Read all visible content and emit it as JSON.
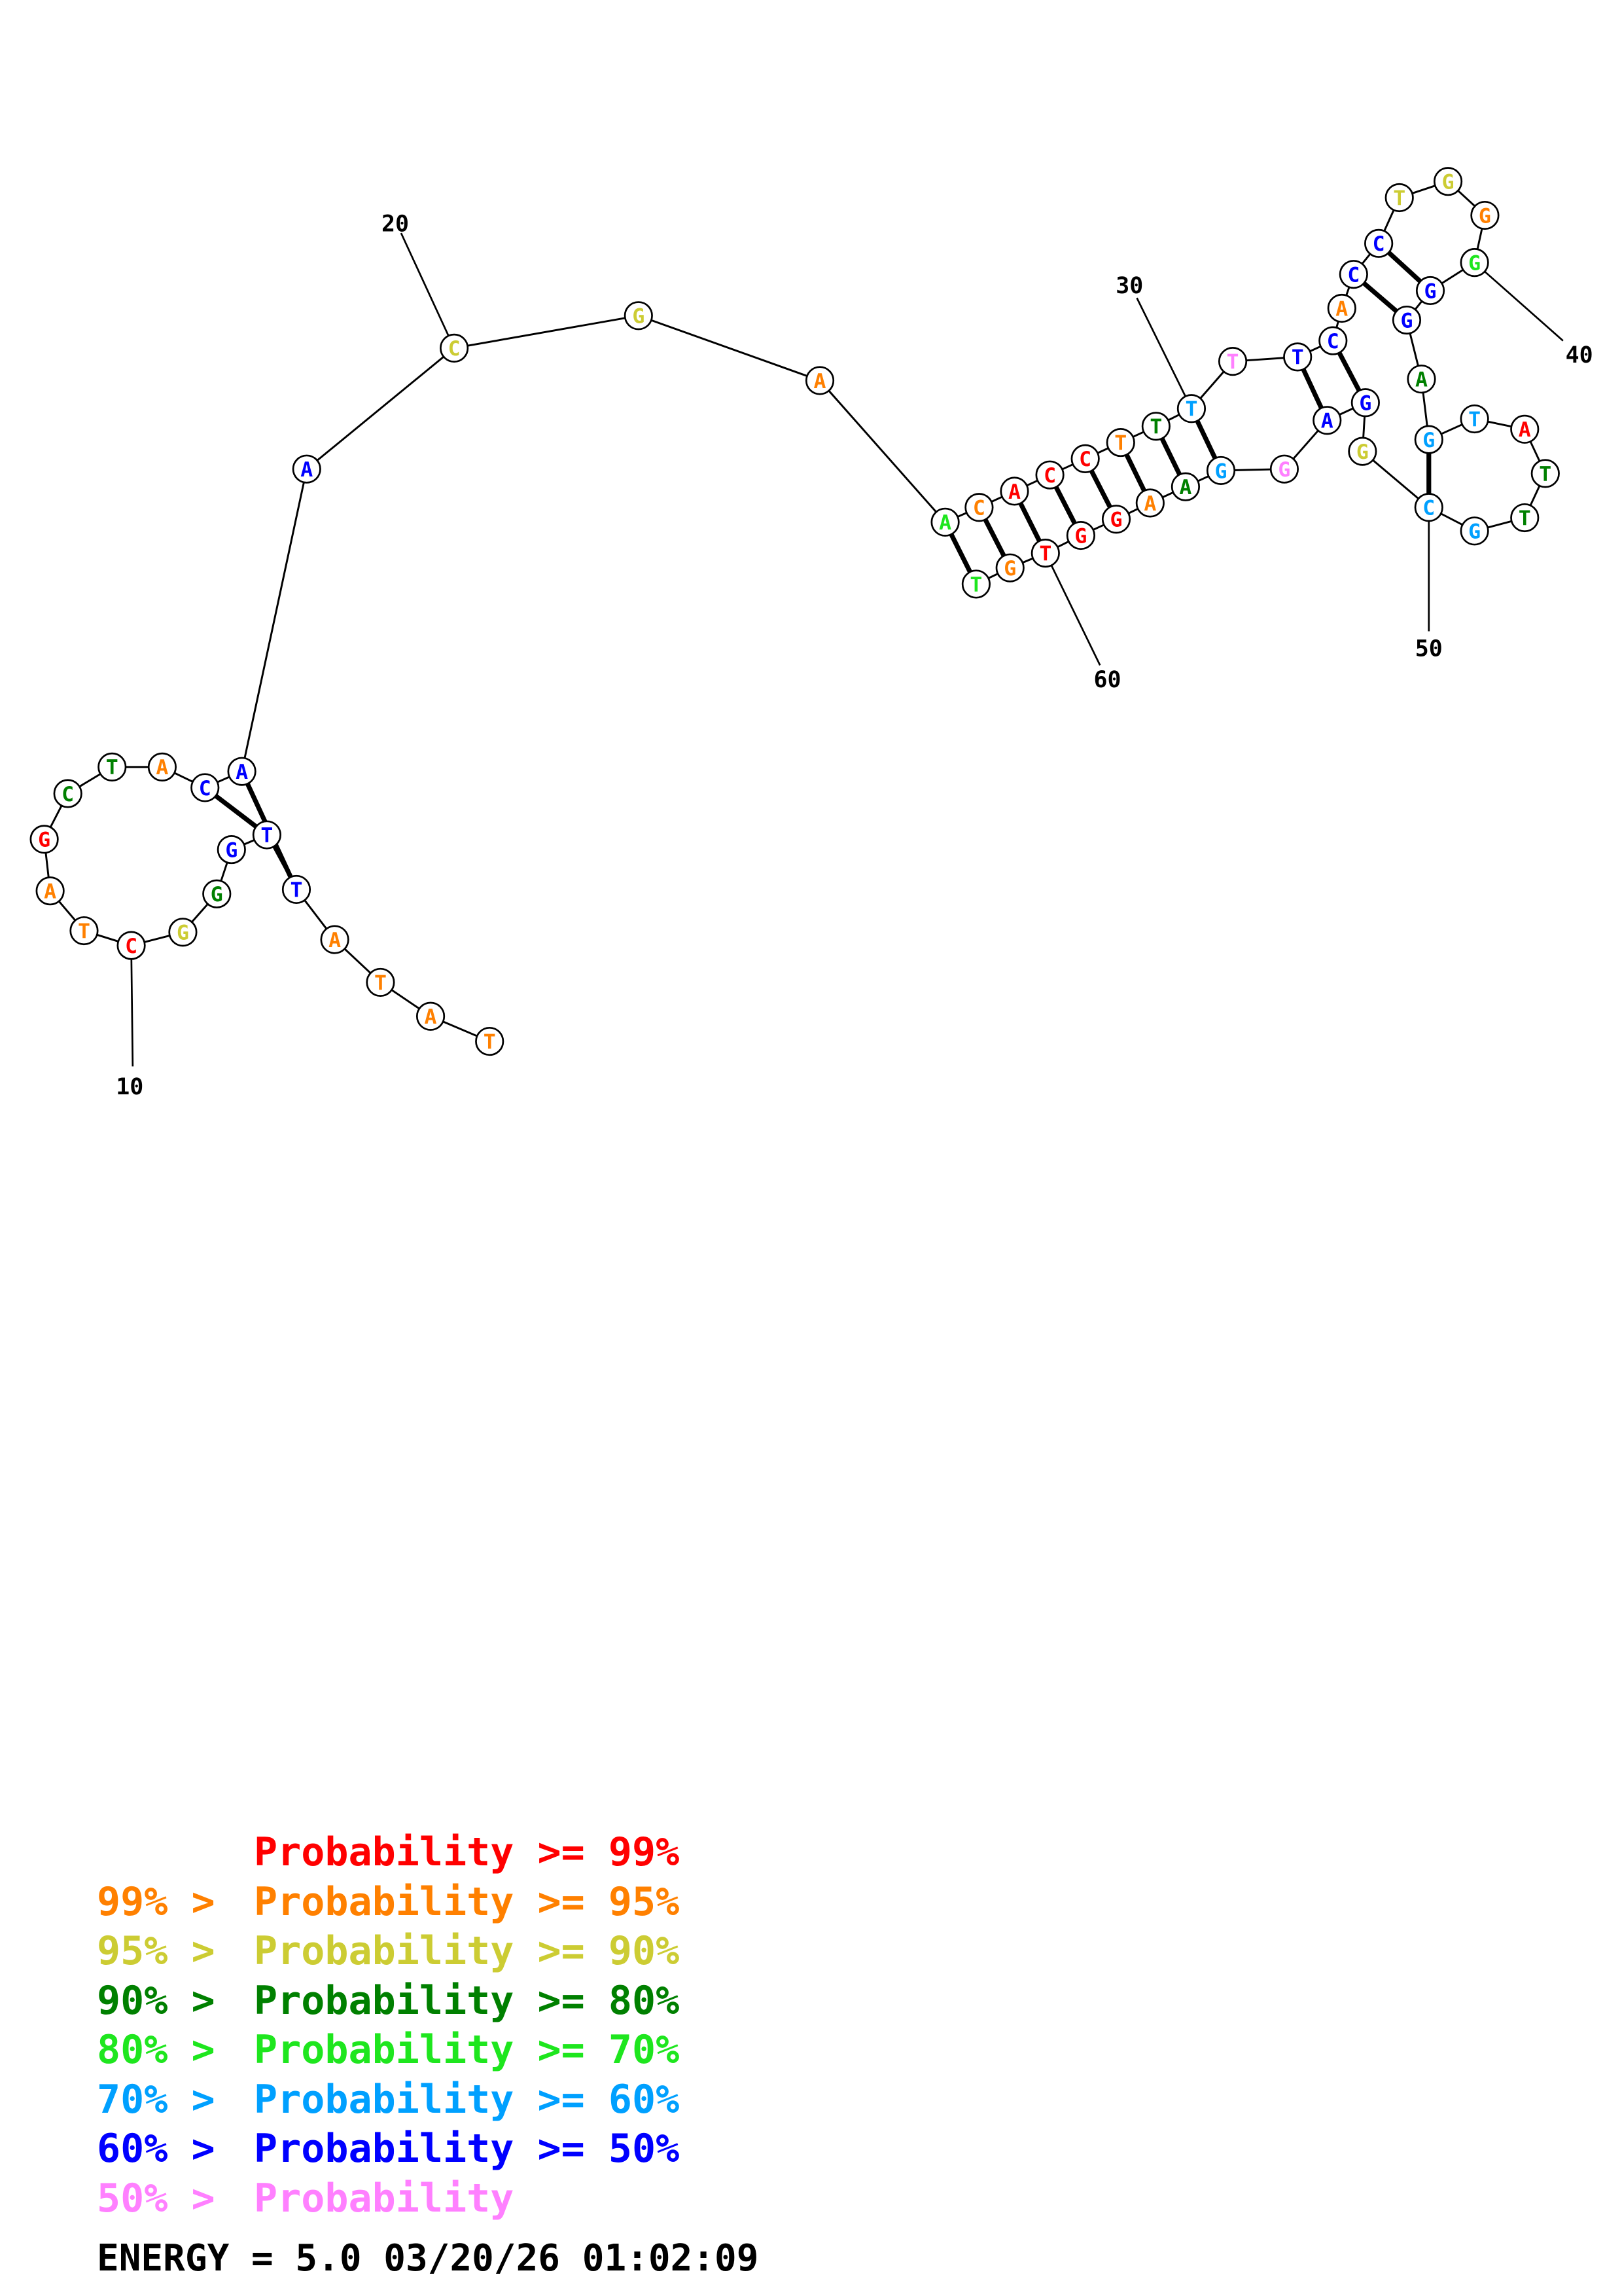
{
  "colors": {
    "red": "#ff0000",
    "orange": "#ff8000",
    "yellow": "#cccc33",
    "darkgreen": "#008000",
    "green": "#1ee61e",
    "cyan": "#00a0ff",
    "blue": "#0000ff",
    "pink": "#ff80ff"
  },
  "sequence": [
    {
      "n": 1,
      "b": "T",
      "c": "orange"
    },
    {
      "n": 2,
      "b": "A",
      "c": "orange"
    },
    {
      "n": 3,
      "b": "T",
      "c": "orange"
    },
    {
      "n": 4,
      "b": "A",
      "c": "orange"
    },
    {
      "n": 5,
      "b": "T",
      "c": "blue"
    },
    {
      "n": 6,
      "b": "T",
      "c": "blue"
    },
    {
      "n": 7,
      "b": "G",
      "c": "blue"
    },
    {
      "n": 8,
      "b": "G",
      "c": "darkgreen"
    },
    {
      "n": 9,
      "b": "G",
      "c": "yellow"
    },
    {
      "n": 10,
      "b": "C",
      "c": "red"
    },
    {
      "n": 11,
      "b": "T",
      "c": "orange"
    },
    {
      "n": 12,
      "b": "A",
      "c": "orange"
    },
    {
      "n": 13,
      "b": "G",
      "c": "red"
    },
    {
      "n": 14,
      "b": "C",
      "c": "darkgreen"
    },
    {
      "n": 15,
      "b": "T",
      "c": "darkgreen"
    },
    {
      "n": 16,
      "b": "A",
      "c": "orange"
    },
    {
      "n": 17,
      "b": "C",
      "c": "blue"
    },
    {
      "n": 18,
      "b": "A",
      "c": "blue"
    },
    {
      "n": 19,
      "b": "A",
      "c": "blue"
    },
    {
      "n": 20,
      "b": "C",
      "c": "yellow"
    },
    {
      "n": 21,
      "b": "G",
      "c": "yellow"
    },
    {
      "n": 22,
      "b": "A",
      "c": "orange"
    },
    {
      "n": 23,
      "b": "A",
      "c": "green"
    },
    {
      "n": 24,
      "b": "C",
      "c": "orange"
    },
    {
      "n": 25,
      "b": "A",
      "c": "red"
    },
    {
      "n": 26,
      "b": "C",
      "c": "red"
    },
    {
      "n": 27,
      "b": "C",
      "c": "red"
    },
    {
      "n": 28,
      "b": "T",
      "c": "orange"
    },
    {
      "n": 29,
      "b": "T",
      "c": "darkgreen"
    },
    {
      "n": 30,
      "b": "T",
      "c": "cyan"
    },
    {
      "n": 31,
      "b": "T",
      "c": "pink"
    },
    {
      "n": 32,
      "b": "T",
      "c": "blue"
    },
    {
      "n": 33,
      "b": "C",
      "c": "blue"
    },
    {
      "n": 34,
      "b": "A",
      "c": "orange"
    },
    {
      "n": 35,
      "b": "C",
      "c": "blue"
    },
    {
      "n": 36,
      "b": "C",
      "c": "blue"
    },
    {
      "n": 37,
      "b": "T",
      "c": "yellow"
    },
    {
      "n": 38,
      "b": "G",
      "c": "yellow"
    },
    {
      "n": 39,
      "b": "G",
      "c": "orange"
    },
    {
      "n": 40,
      "b": "G",
      "c": "green"
    },
    {
      "n": 41,
      "b": "G",
      "c": "blue"
    },
    {
      "n": 42,
      "b": "G",
      "c": "blue"
    },
    {
      "n": 43,
      "b": "A",
      "c": "darkgreen"
    },
    {
      "n": 44,
      "b": "G",
      "c": "cyan"
    },
    {
      "n": 45,
      "b": "T",
      "c": "cyan"
    },
    {
      "n": 46,
      "b": "A",
      "c": "red"
    },
    {
      "n": 47,
      "b": "T",
      "c": "darkgreen"
    },
    {
      "n": 48,
      "b": "T",
      "c": "darkgreen"
    },
    {
      "n": 49,
      "b": "G",
      "c": "cyan"
    },
    {
      "n": 50,
      "b": "C",
      "c": "cyan"
    },
    {
      "n": 51,
      "b": "G",
      "c": "yellow"
    },
    {
      "n": 52,
      "b": "G",
      "c": "blue"
    },
    {
      "n": 53,
      "b": "A",
      "c": "blue"
    },
    {
      "n": 54,
      "b": "G",
      "c": "pink"
    },
    {
      "n": 55,
      "b": "G",
      "c": "cyan"
    },
    {
      "n": 56,
      "b": "A",
      "c": "darkgreen"
    },
    {
      "n": 57,
      "b": "A",
      "c": "orange"
    },
    {
      "n": 58,
      "b": "G",
      "c": "red"
    },
    {
      "n": 59,
      "b": "G",
      "c": "red"
    },
    {
      "n": 60,
      "b": "T",
      "c": "red"
    },
    {
      "n": 61,
      "b": "G",
      "c": "orange"
    },
    {
      "n": 62,
      "b": "T",
      "c": "green"
    }
  ],
  "pairs": [
    [
      5,
      18
    ],
    [
      6,
      17
    ],
    [
      23,
      62
    ],
    [
      24,
      61
    ],
    [
      25,
      60
    ],
    [
      26,
      59
    ],
    [
      27,
      58
    ],
    [
      28,
      57
    ],
    [
      29,
      56
    ],
    [
      30,
      55
    ],
    [
      32,
      53
    ],
    [
      33,
      52
    ],
    [
      35,
      42
    ],
    [
      36,
      41
    ],
    [
      44,
      50
    ]
  ],
  "position_labels": [
    {
      "n": 10,
      "text": "10"
    },
    {
      "n": 20,
      "text": "20"
    },
    {
      "n": 30,
      "text": "30"
    },
    {
      "n": 40,
      "text": "40"
    },
    {
      "n": 50,
      "text": "50"
    },
    {
      "n": 60,
      "text": "60"
    }
  ],
  "legend": [
    {
      "left": "",
      "right": "Probability >= 99%",
      "c": "red"
    },
    {
      "left": "99% >",
      "right": "Probability >= 95%",
      "c": "orange"
    },
    {
      "left": "95% >",
      "right": "Probability >= 90%",
      "c": "yellow"
    },
    {
      "left": "90% >",
      "right": "Probability >= 80%",
      "c": "darkgreen"
    },
    {
      "left": "80% >",
      "right": "Probability >= 70%",
      "c": "green"
    },
    {
      "left": "70% >",
      "right": "Probability >= 60%",
      "c": "cyan"
    },
    {
      "left": "60% >",
      "right": "Probability >= 50%",
      "c": "blue"
    },
    {
      "left": "50% >",
      "right": "Probability",
      "c": "pink"
    }
  ],
  "footer": {
    "energy": "ENERGY = 5.0  03/20/26 01:02:09"
  }
}
